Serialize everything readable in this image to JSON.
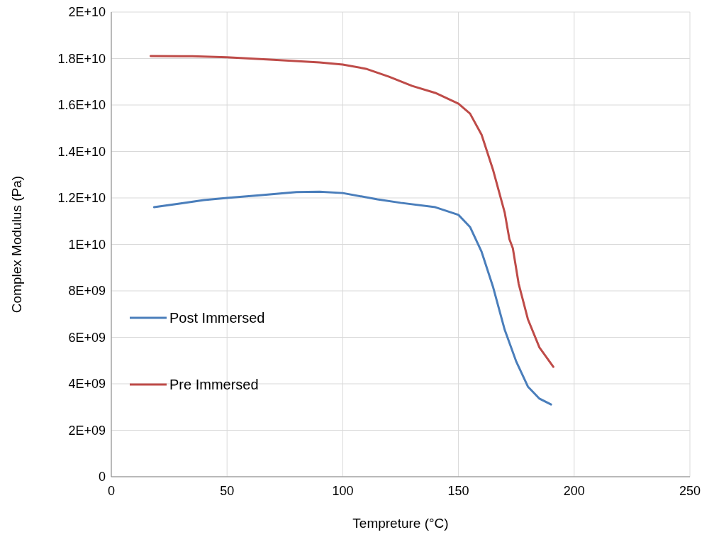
{
  "chart_data": {
    "type": "line",
    "xlabel": "Tempreture (°C)",
    "ylabel": "Complex Modulus (Pa)",
    "xlim": [
      0,
      250
    ],
    "xticks": [
      0,
      50,
      100,
      150,
      200,
      250
    ],
    "ylim": [
      0,
      20000000000
    ],
    "yticks": [
      0,
      {
        "value": 2000000000,
        "label": "2E+09"
      },
      {
        "value": 4000000000,
        "label": "4E+09"
      },
      {
        "value": 6000000000,
        "label": "6E+09"
      },
      {
        "value": 8000000000,
        "label": "8E+09"
      },
      {
        "value": 10000000000,
        "label": "1E+10"
      },
      {
        "value": 12000000000,
        "label": "1.2E+10"
      },
      {
        "value": 14000000000,
        "label": "1.4E+10"
      },
      {
        "value": 16000000000,
        "label": "1.6E+10"
      },
      {
        "value": 18000000000,
        "label": "1.8E+10"
      },
      {
        "value": 20000000000,
        "label": "2E+10"
      }
    ],
    "grid": true,
    "legend": "left",
    "marker": "none",
    "line_style": "solid",
    "series": [
      {
        "name": "Post Immersed",
        "color": "#4a7ebb",
        "x": [
          18.5,
          30,
          40,
          50,
          65,
          80,
          90,
          100,
          115,
          125,
          140,
          150,
          155,
          160,
          165,
          170,
          175,
          180,
          185,
          190
        ],
        "values": [
          11600000000,
          11760000000,
          11910000000,
          12000000000,
          12120000000,
          12250000000,
          12270000000,
          12210000000,
          11940000000,
          11790000000,
          11600000000,
          11270000000,
          10750000000,
          9680000000,
          8150000000,
          6320000000,
          4950000000,
          3880000000,
          3360000000,
          3110000000
        ]
      },
      {
        "name": "Pre Immersed",
        "color": "#be4b48",
        "x": [
          17,
          35,
          50,
          70,
          90,
          100,
          110,
          120,
          130,
          140,
          150,
          155,
          160,
          165,
          170,
          172,
          173.5,
          176,
          180,
          185,
          191
        ],
        "values": [
          18110000000,
          18100000000,
          18050000000,
          17950000000,
          17830000000,
          17740000000,
          17560000000,
          17220000000,
          16820000000,
          16520000000,
          16060000000,
          15630000000,
          14720000000,
          13190000000,
          11360000000,
          10230000000,
          9830000000,
          8310000000,
          6780000000,
          5560000000,
          4730000000
        ]
      }
    ]
  }
}
